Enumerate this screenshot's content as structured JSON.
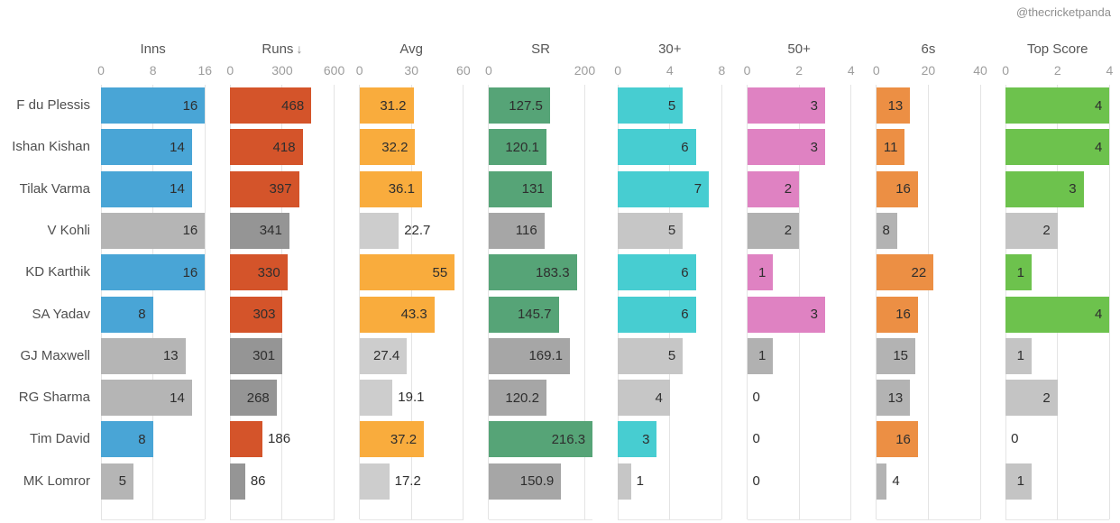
{
  "handle": "@thecricketpanda",
  "chart_data": {
    "type": "bar",
    "layout": "small-multiples, one horizontal bar panel per stat, one row per player",
    "grid": true,
    "legend": false,
    "annotation": "@thecricketpanda",
    "categories": [
      "F du Plessis",
      "Ishan Kishan",
      "Tilak Varma",
      "V Kohli",
      "KD Karthik",
      "SA Yadav",
      "GJ Maxwell",
      "RG Sharma",
      "Tim David",
      "MK Lomror"
    ],
    "muted_rows": [
      "V Kohli",
      "GJ Maxwell",
      "RG Sharma",
      "MK Lomror"
    ],
    "highlighted": [
      true,
      true,
      true,
      false,
      true,
      true,
      false,
      false,
      true,
      false
    ],
    "panels": [
      {
        "key": "inns",
        "label": "Inns",
        "sorted": false,
        "ticks": [
          0,
          8,
          16
        ],
        "axis_max": 16,
        "color": "#49a5d6",
        "muted_color": "#b5b5b5",
        "values": [
          16,
          14,
          14,
          16,
          16,
          8,
          13,
          14,
          8,
          5
        ]
      },
      {
        "key": "runs",
        "label": "Runs",
        "sorted": true,
        "sort_indicator": "↓",
        "ticks": [
          0,
          300,
          600
        ],
        "axis_max": 600,
        "color": "#d4542a",
        "muted_color": "#959595",
        "values": [
          468,
          418,
          397,
          341,
          330,
          303,
          301,
          268,
          186,
          86
        ]
      },
      {
        "key": "avg",
        "label": "Avg",
        "sorted": false,
        "ticks": [
          0,
          30,
          60
        ],
        "axis_max": 60,
        "color": "#f9ac3d",
        "muted_color": "#cdcdcd",
        "values": [
          31.2,
          32.2,
          36.1,
          22.7,
          55,
          43.3,
          27.4,
          19.1,
          37.2,
          17.2
        ]
      },
      {
        "key": "sr",
        "label": "SR",
        "sorted": false,
        "ticks": [
          0,
          200
        ],
        "axis_max": 216.3,
        "color": "#56a477",
        "muted_color": "#a6a6a6",
        "values": [
          127.5,
          120.1,
          131,
          116,
          183.3,
          145.7,
          169.1,
          120.2,
          216.3,
          150.9
        ]
      },
      {
        "key": "thirty_plus",
        "label": "30+",
        "sorted": false,
        "ticks": [
          0,
          4,
          8
        ],
        "axis_max": 8,
        "color": "#47cdd1",
        "muted_color": "#c6c6c6",
        "values": [
          5,
          6,
          7,
          5,
          6,
          6,
          5,
          4,
          3,
          1
        ]
      },
      {
        "key": "fifty_plus",
        "label": "50+",
        "sorted": false,
        "ticks": [
          0,
          2,
          4
        ],
        "axis_max": 4,
        "color": "#df82c2",
        "muted_color": "#b1b1b1",
        "values": [
          3,
          3,
          2,
          2,
          1,
          3,
          1,
          0,
          0,
          0
        ]
      },
      {
        "key": "sixes",
        "label": "6s",
        "sorted": false,
        "ticks": [
          0,
          20,
          40
        ],
        "axis_max": 40,
        "color": "#ec8f44",
        "muted_color": "#b3b3b3",
        "values": [
          13,
          11,
          16,
          8,
          22,
          16,
          15,
          13,
          16,
          4
        ]
      },
      {
        "key": "top_score",
        "label": "Top Score",
        "sorted": false,
        "ticks": [
          0,
          2,
          4
        ],
        "axis_max": 4,
        "color": "#6dc24d",
        "muted_color": "#c4c4c4",
        "values": [
          4,
          4,
          3,
          2,
          1,
          4,
          1,
          2,
          0,
          1
        ]
      }
    ]
  }
}
